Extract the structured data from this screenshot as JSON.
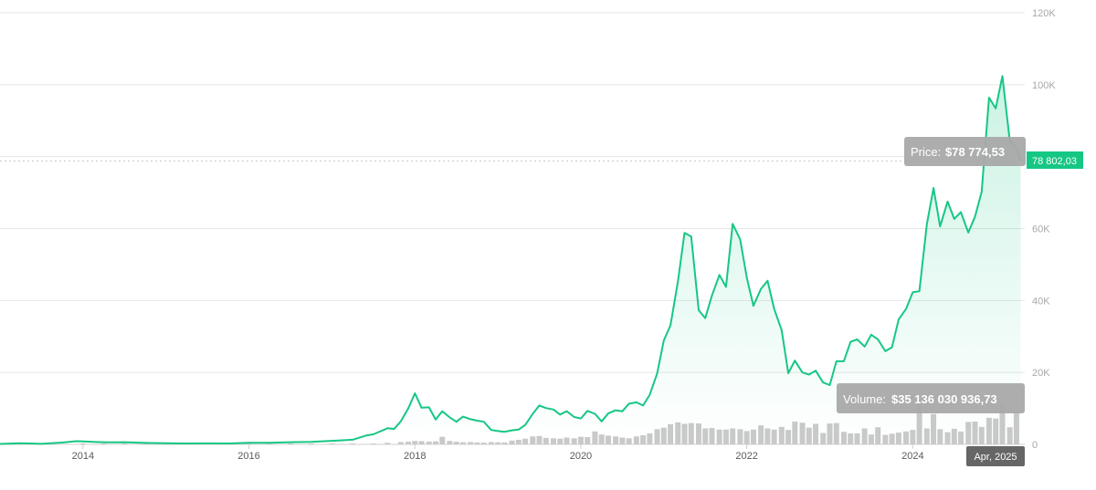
{
  "chart_data": {
    "type": "line",
    "title": "",
    "xlabel": "",
    "ylabel": "",
    "xlim": [
      2013.0,
      2025.35
    ],
    "ylim": [
      0,
      120000
    ],
    "y_ticks": [
      {
        "value": 0,
        "label": "0"
      },
      {
        "value": 20000,
        "label": "20K"
      },
      {
        "value": 40000,
        "label": "40K"
      },
      {
        "value": 60000,
        "label": "60K"
      },
      {
        "value": 80000,
        "label": "80K"
      },
      {
        "value": 100000,
        "label": "100K"
      },
      {
        "value": 120000,
        "label": "120K"
      }
    ],
    "x_ticks": [
      {
        "value": 2014,
        "label": "2014"
      },
      {
        "value": 2016,
        "label": "2016"
      },
      {
        "value": 2018,
        "label": "2018"
      },
      {
        "value": 2020,
        "label": "2020"
      },
      {
        "value": 2022,
        "label": "2022"
      },
      {
        "value": 2024,
        "label": "2024"
      }
    ],
    "grid": true,
    "series": [
      {
        "kind": "price",
        "color": "#16c784",
        "x": [
          2013.0,
          2013.25,
          2013.5,
          2013.75,
          2013.92,
          2014.0,
          2014.15,
          2014.3,
          2014.5,
          2014.75,
          2015.0,
          2015.25,
          2015.5,
          2015.75,
          2016.0,
          2016.25,
          2016.5,
          2016.75,
          2017.0,
          2017.25,
          2017.42,
          2017.5,
          2017.67,
          2017.75,
          2017.83,
          2017.92,
          2018.0,
          2018.08,
          2018.17,
          2018.25,
          2018.33,
          2018.42,
          2018.5,
          2018.58,
          2018.67,
          2018.75,
          2018.83,
          2018.92,
          2019.0,
          2019.08,
          2019.17,
          2019.25,
          2019.33,
          2019.42,
          2019.5,
          2019.58,
          2019.67,
          2019.75,
          2019.83,
          2019.92,
          2020.0,
          2020.08,
          2020.17,
          2020.25,
          2020.33,
          2020.42,
          2020.5,
          2020.58,
          2020.67,
          2020.75,
          2020.83,
          2020.92,
          2021.0,
          2021.08,
          2021.17,
          2021.25,
          2021.33,
          2021.42,
          2021.5,
          2021.58,
          2021.67,
          2021.75,
          2021.83,
          2021.92,
          2022.0,
          2022.08,
          2022.17,
          2022.25,
          2022.33,
          2022.42,
          2022.5,
          2022.58,
          2022.67,
          2022.75,
          2022.83,
          2022.92,
          2023.0,
          2023.08,
          2023.17,
          2023.25,
          2023.33,
          2023.42,
          2023.5,
          2023.58,
          2023.67,
          2023.75,
          2023.83,
          2023.92,
          2024.0,
          2024.08,
          2024.17,
          2024.25,
          2024.33,
          2024.42,
          2024.5,
          2024.58,
          2024.67,
          2024.75,
          2024.83,
          2024.92,
          2025.0,
          2025.08,
          2025.17,
          2025.25,
          2025.3
        ],
        "y": [
          120,
          300,
          150,
          500,
          900,
          800,
          650,
          550,
          600,
          400,
          300,
          250,
          280,
          250,
          430,
          450,
          600,
          700,
          1000,
          1300,
          2500,
          2800,
          4500,
          4300,
          6400,
          10000,
          14200,
          10200,
          10300,
          6900,
          9200,
          7500,
          6300,
          7700,
          7000,
          6600,
          6300,
          4000,
          3700,
          3500,
          3900,
          4100,
          5400,
          8500,
          10800,
          10100,
          9700,
          8300,
          9200,
          7600,
          7200,
          9300,
          8500,
          6400,
          8600,
          9500,
          9200,
          11300,
          11700,
          10800,
          13800,
          19700,
          28900,
          33100,
          45200,
          58800,
          57800,
          37300,
          35100,
          41400,
          47100,
          43800,
          61300,
          57000,
          46300,
          38500,
          43200,
          45500,
          37700,
          31800,
          19800,
          23300,
          20000,
          19400,
          20500,
          17200,
          16500,
          23100,
          23100,
          28500,
          29200,
          27200,
          30500,
          29200,
          25900,
          27000,
          34700,
          37700,
          42300,
          42600,
          61200,
          71300,
          60600,
          67500,
          62700,
          64600,
          58900,
          63300,
          70200,
          96400,
          93400,
          102400,
          84400,
          82500,
          78800
        ]
      },
      {
        "kind": "volume",
        "color": "#c9c9c9",
        "x": [
          2014.0,
          2014.25,
          2014.5,
          2014.75,
          2015.0,
          2015.25,
          2015.5,
          2015.75,
          2016.0,
          2016.25,
          2016.5,
          2016.75,
          2017.0,
          2017.25,
          2017.5,
          2017.67,
          2017.83,
          2017.92,
          2018.0,
          2018.08,
          2018.17,
          2018.25,
          2018.33,
          2018.42,
          2018.5,
          2018.58,
          2018.67,
          2018.75,
          2018.83,
          2018.92,
          2019.0,
          2019.08,
          2019.17,
          2019.25,
          2019.33,
          2019.42,
          2019.5,
          2019.58,
          2019.67,
          2019.75,
          2019.83,
          2019.92,
          2020.0,
          2020.08,
          2020.17,
          2020.25,
          2020.33,
          2020.42,
          2020.5,
          2020.58,
          2020.67,
          2020.75,
          2020.83,
          2020.92,
          2021.0,
          2021.08,
          2021.17,
          2021.25,
          2021.33,
          2021.42,
          2021.5,
          2021.58,
          2021.67,
          2021.75,
          2021.83,
          2021.92,
          2022.0,
          2022.08,
          2022.17,
          2022.25,
          2022.33,
          2022.42,
          2022.5,
          2022.58,
          2022.67,
          2022.75,
          2022.83,
          2022.92,
          2023.0,
          2023.08,
          2023.17,
          2023.25,
          2023.33,
          2023.42,
          2023.5,
          2023.58,
          2023.67,
          2023.75,
          2023.83,
          2023.92,
          2024.0,
          2024.08,
          2024.17,
          2024.25,
          2024.33,
          2024.42,
          2024.5,
          2024.58,
          2024.67,
          2024.75,
          2024.83,
          2024.92,
          2025.0,
          2025.08,
          2025.17,
          2025.25
        ],
        "values": [
          10,
          10,
          10,
          10,
          10,
          10,
          10,
          10,
          10,
          10,
          10,
          10,
          12,
          15,
          20,
          40,
          60,
          70,
          90,
          85,
          75,
          80,
          200,
          90,
          70,
          55,
          60,
          50,
          45,
          60,
          55,
          50,
          100,
          120,
          150,
          210,
          220,
          170,
          160,
          150,
          180,
          160,
          200,
          190,
          340,
          260,
          230,
          210,
          180,
          160,
          210,
          240,
          290,
          400,
          440,
          530,
          580,
          540,
          560,
          550,
          420,
          430,
          390,
          390,
          420,
          400,
          350,
          390,
          500,
          420,
          390,
          460,
          380,
          600,
          570,
          440,
          540,
          300,
          550,
          560,
          330,
          290,
          290,
          420,
          260,
          450,
          250,
          280,
          310,
          340,
          380,
          1180,
          420,
          800,
          400,
          320,
          410,
          340,
          590,
          600,
          460,
          700,
          680,
          1090,
          450,
          840
        ],
        "max": 1200
      }
    ],
    "annotations": {
      "price_tooltip": {
        "label": "Price:",
        "value": "$78 774,53"
      },
      "volume_tooltip": {
        "label": "Volume:",
        "value": "$35 136 030 936,73"
      },
      "last_price_badge": "78 802,03",
      "hover_date_badge": "Apr, 2025"
    }
  }
}
